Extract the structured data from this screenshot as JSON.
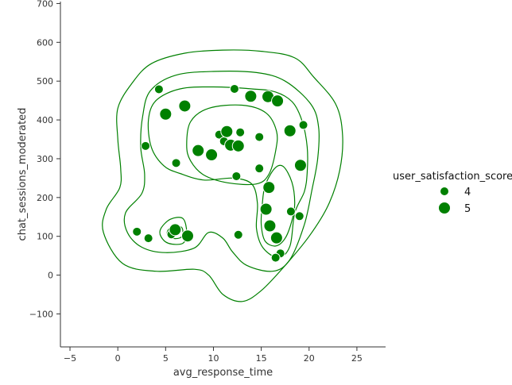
{
  "chart_data": {
    "type": "scatter",
    "xlabel": "avg_response_time",
    "ylabel": "chat_sessions_moderated",
    "xlim": [
      -6,
      28
    ],
    "ylim": [
      -185,
      705
    ],
    "x_ticks": [
      -5,
      0,
      5,
      10,
      15,
      20,
      25
    ],
    "y_ticks": [
      -100,
      0,
      100,
      200,
      300,
      400,
      500,
      600,
      700
    ],
    "x_tick_labels": [
      "−5",
      "0",
      "5",
      "10",
      "15",
      "20",
      "25"
    ],
    "y_tick_labels": [
      "−100",
      "0",
      "100",
      "200",
      "300",
      "400",
      "500",
      "600",
      "700"
    ],
    "grid": false,
    "color": "#008000",
    "legend": {
      "title": "user_satisfaction_score",
      "placement": "right",
      "entries": [
        {
          "label": "4",
          "value": 4
        },
        {
          "label": "5",
          "value": 5
        }
      ]
    },
    "points": [
      {
        "x": 4.3,
        "y": 479,
        "score": 4
      },
      {
        "x": 5.0,
        "y": 415,
        "score": 5
      },
      {
        "x": 7.0,
        "y": 436,
        "score": 5
      },
      {
        "x": 2.9,
        "y": 333,
        "score": 4
      },
      {
        "x": 6.1,
        "y": 289,
        "score": 4
      },
      {
        "x": 8.4,
        "y": 321,
        "score": 5
      },
      {
        "x": 9.8,
        "y": 310,
        "score": 5
      },
      {
        "x": 10.6,
        "y": 362,
        "score": 4
      },
      {
        "x": 11.1,
        "y": 345,
        "score": 4
      },
      {
        "x": 11.4,
        "y": 370,
        "score": 5
      },
      {
        "x": 11.8,
        "y": 335,
        "score": 5
      },
      {
        "x": 12.6,
        "y": 333,
        "score": 5
      },
      {
        "x": 12.8,
        "y": 368,
        "score": 4
      },
      {
        "x": 12.2,
        "y": 480,
        "score": 4
      },
      {
        "x": 12.4,
        "y": 255,
        "score": 4
      },
      {
        "x": 13.9,
        "y": 461,
        "score": 5
      },
      {
        "x": 14.8,
        "y": 356,
        "score": 4
      },
      {
        "x": 14.8,
        "y": 275,
        "score": 4
      },
      {
        "x": 15.7,
        "y": 460,
        "score": 5
      },
      {
        "x": 16.7,
        "y": 449,
        "score": 5
      },
      {
        "x": 15.8,
        "y": 226,
        "score": 5
      },
      {
        "x": 18.0,
        "y": 372,
        "score": 5
      },
      {
        "x": 19.4,
        "y": 387,
        "score": 4
      },
      {
        "x": 19.1,
        "y": 283,
        "score": 5
      },
      {
        "x": 15.5,
        "y": 170,
        "score": 5
      },
      {
        "x": 15.9,
        "y": 127,
        "score": 5
      },
      {
        "x": 18.1,
        "y": 164,
        "score": 4
      },
      {
        "x": 19.0,
        "y": 152,
        "score": 4
      },
      {
        "x": 16.6,
        "y": 96,
        "score": 5
      },
      {
        "x": 17.0,
        "y": 56,
        "score": 4
      },
      {
        "x": 16.5,
        "y": 45,
        "score": 4
      },
      {
        "x": 12.6,
        "y": 104,
        "score": 4
      },
      {
        "x": 2.0,
        "y": 112,
        "score": 4
      },
      {
        "x": 3.2,
        "y": 95,
        "score": 4
      },
      {
        "x": 5.6,
        "y": 105,
        "score": 4
      },
      {
        "x": 6.0,
        "y": 117,
        "score": 5
      },
      {
        "x": 7.3,
        "y": 101,
        "score": 5
      }
    ],
    "density_contours": [
      [
        [
          -1.5,
          110
        ],
        [
          -1.2,
          170
        ],
        [
          0.2,
          225
        ],
        [
          0.3,
          275
        ],
        [
          0.0,
          350
        ],
        [
          0.0,
          430
        ],
        [
          1.5,
          495
        ],
        [
          3.5,
          545
        ],
        [
          7,
          572
        ],
        [
          11,
          580
        ],
        [
          15,
          577
        ],
        [
          18.5,
          560
        ],
        [
          20.5,
          510
        ],
        [
          22.8,
          440
        ],
        [
          23.5,
          360
        ],
        [
          23.2,
          270
        ],
        [
          22,
          180
        ],
        [
          20,
          100
        ],
        [
          17.5,
          25
        ],
        [
          15,
          -40
        ],
        [
          13,
          -68
        ],
        [
          11,
          -50
        ],
        [
          9.5,
          0
        ],
        [
          8,
          15
        ],
        [
          4,
          10
        ],
        [
          0.5,
          30
        ],
        [
          -1.5,
          110
        ]
      ],
      [
        [
          0.8,
          160
        ],
        [
          2.5,
          210
        ],
        [
          2.8,
          260
        ],
        [
          2.4,
          330
        ],
        [
          2.6,
          410
        ],
        [
          3.4,
          475
        ],
        [
          6,
          515
        ],
        [
          10,
          525
        ],
        [
          14.5,
          522
        ],
        [
          17.5,
          500
        ],
        [
          20.2,
          440
        ],
        [
          21.0,
          380
        ],
        [
          20.9,
          300
        ],
        [
          20.3,
          220
        ],
        [
          19.5,
          130
        ],
        [
          18.0,
          40
        ],
        [
          16.2,
          10
        ],
        [
          13.5,
          25
        ],
        [
          12,
          60
        ],
        [
          11,
          95
        ],
        [
          9.5,
          110
        ],
        [
          8,
          70
        ],
        [
          5,
          58
        ],
        [
          2.5,
          72
        ],
        [
          1,
          110
        ],
        [
          0.8,
          160
        ]
      ],
      [
        [
          3.5,
          330
        ],
        [
          3.2,
          400
        ],
        [
          4,
          450
        ],
        [
          6.5,
          480
        ],
        [
          10,
          485
        ],
        [
          14,
          480
        ],
        [
          16.5,
          472
        ],
        [
          18.3,
          445
        ],
        [
          19.3,
          395
        ],
        [
          19.8,
          330
        ],
        [
          19.8,
          265
        ],
        [
          19.5,
          215
        ],
        [
          18.5,
          160
        ],
        [
          18,
          75
        ],
        [
          16.8,
          45
        ],
        [
          15.2,
          70
        ],
        [
          14.5,
          120
        ],
        [
          14.6,
          185
        ],
        [
          14.0,
          235
        ],
        [
          12.0,
          250
        ],
        [
          9,
          245
        ],
        [
          6.5,
          262
        ],
        [
          4.8,
          282
        ],
        [
          3.5,
          330
        ]
      ],
      [
        [
          7.2,
          335
        ],
        [
          7.6,
          395
        ],
        [
          9.5,
          430
        ],
        [
          13,
          438
        ],
        [
          15.5,
          418
        ],
        [
          16.6,
          370
        ],
        [
          16.5,
          320
        ],
        [
          15.8,
          260
        ],
        [
          14.5,
          235
        ],
        [
          11.5,
          238
        ],
        [
          9,
          258
        ],
        [
          7.6,
          295
        ],
        [
          7.2,
          335
        ]
      ],
      [
        [
          16.4,
          275
        ],
        [
          17.3,
          280
        ],
        [
          18.2,
          240
        ],
        [
          18.5,
          185
        ],
        [
          18.2,
          140
        ],
        [
          17.5,
          95
        ],
        [
          16.5,
          75
        ],
        [
          15.4,
          88
        ],
        [
          15.0,
          130
        ],
        [
          15.1,
          180
        ],
        [
          15.4,
          230
        ],
        [
          16.4,
          275
        ]
      ],
      [
        [
          4.5,
          120
        ],
        [
          5.5,
          144
        ],
        [
          6.8,
          146
        ],
        [
          7.2,
          110
        ],
        [
          6.8,
          82
        ],
        [
          5.3,
          82
        ],
        [
          4.5,
          100
        ],
        [
          4.5,
          120
        ]
      ],
      [
        [
          5.2,
          113
        ],
        [
          5.8,
          127
        ],
        [
          6.7,
          122
        ],
        [
          6.7,
          100
        ],
        [
          6.0,
          94
        ],
        [
          5.3,
          100
        ],
        [
          5.2,
          113
        ]
      ]
    ]
  }
}
